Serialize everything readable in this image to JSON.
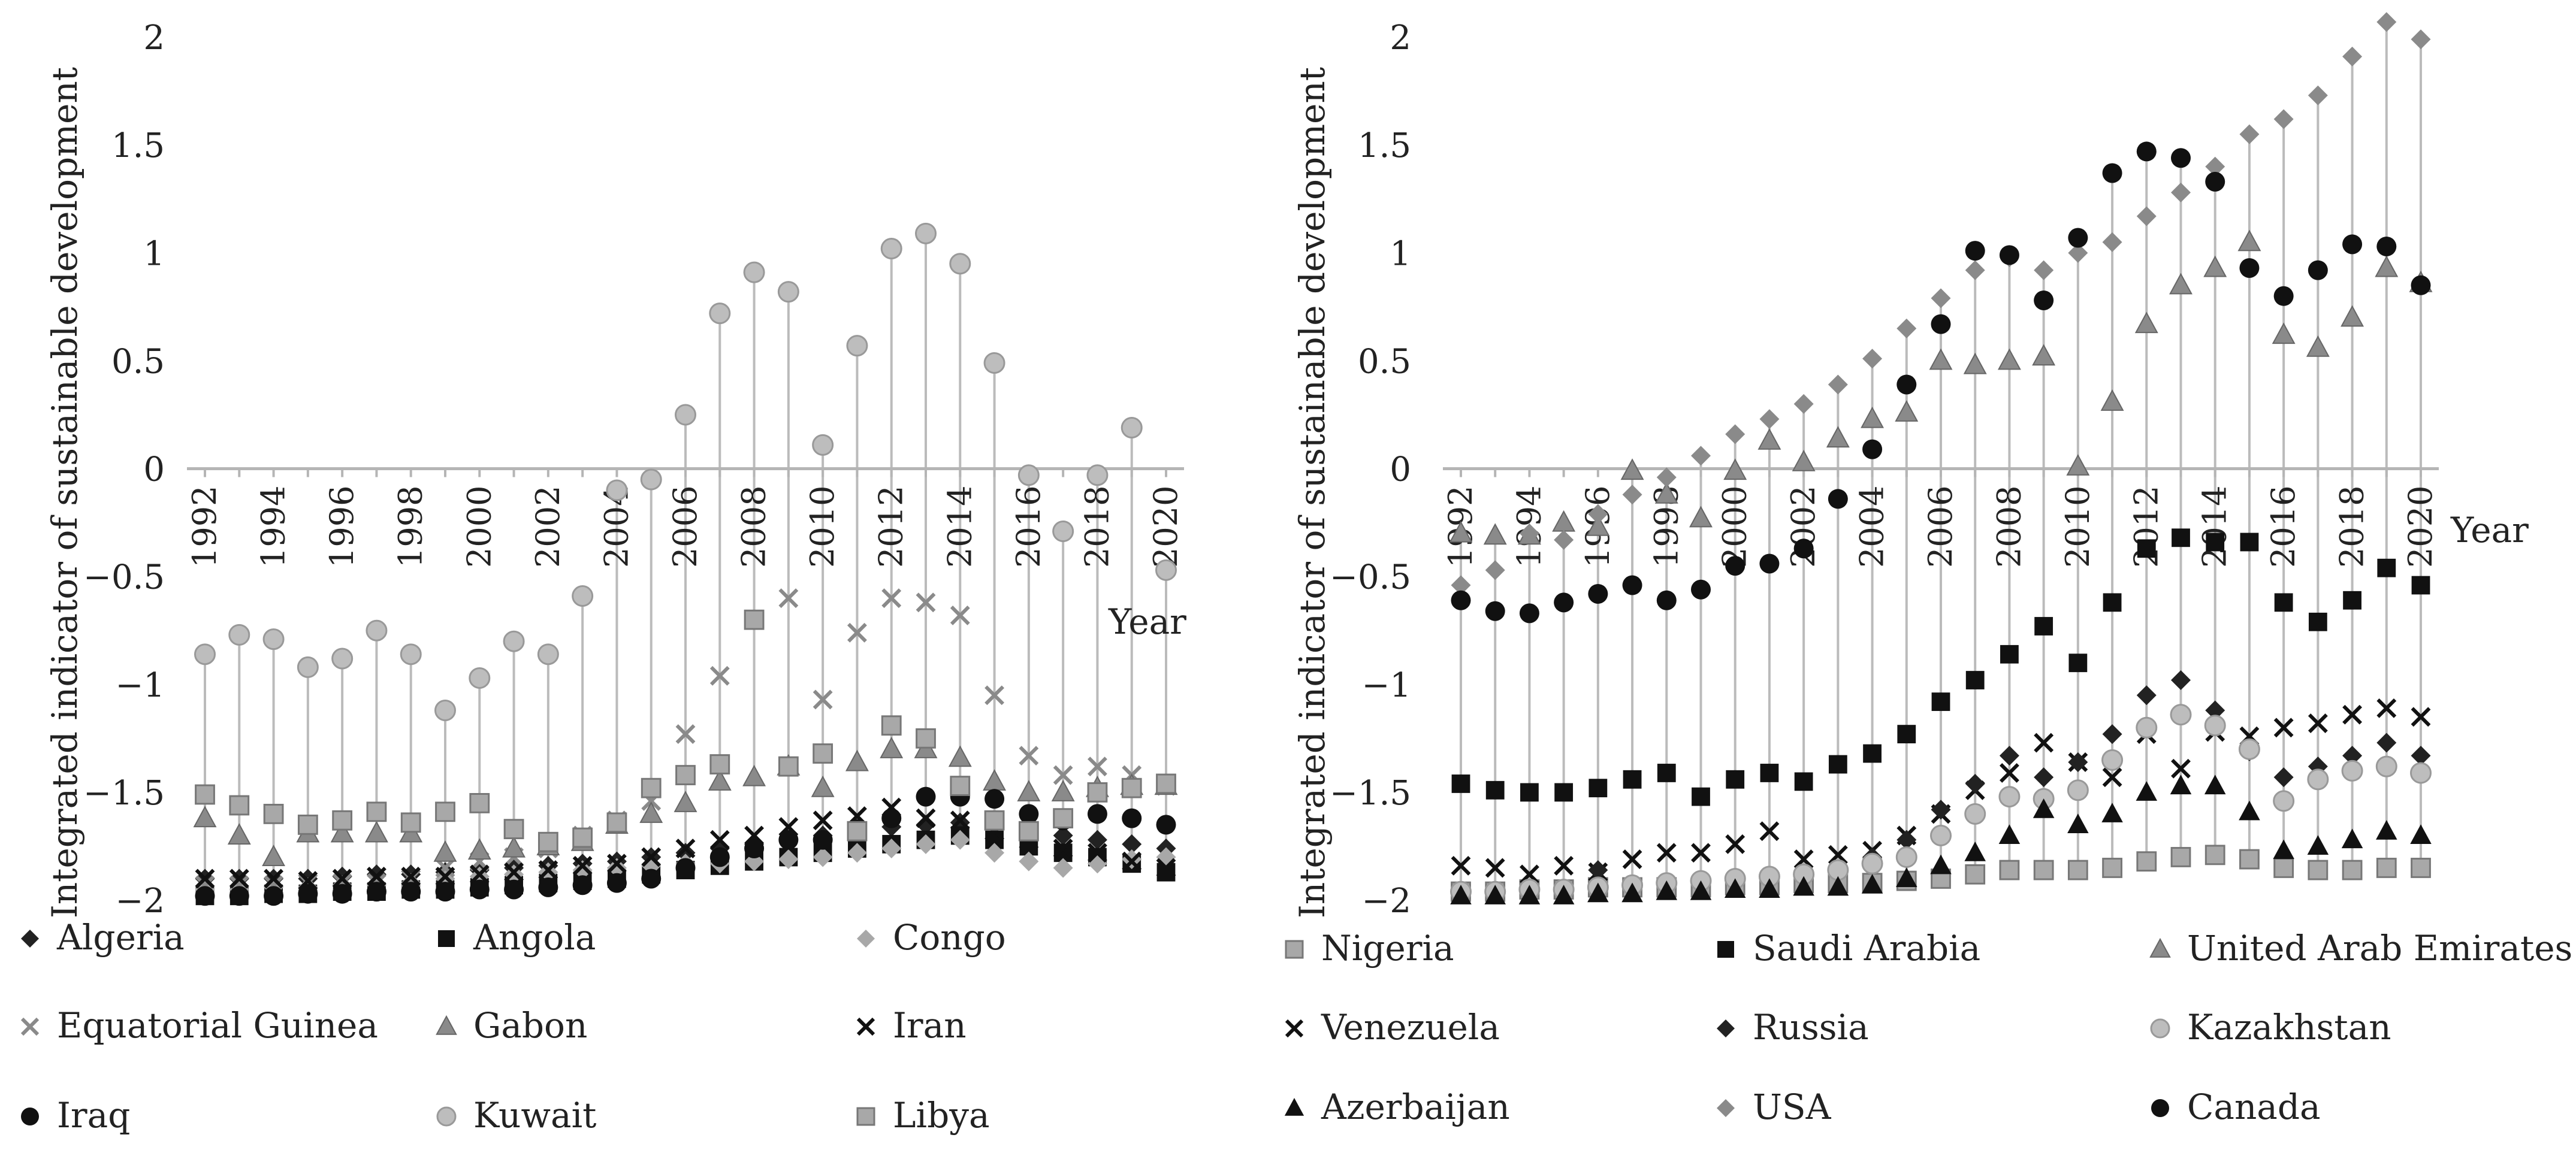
{
  "chart_data": [
    {
      "type": "scatter",
      "title": "",
      "ylabel": "Integrated indicator of sustainable development",
      "xlabel": "Year",
      "ylim": [
        -2,
        2
      ],
      "ytick_labels": [
        "2",
        "1.5",
        "1",
        "0.5",
        "0",
        "−0.5",
        "−1",
        "−1.5",
        "−2"
      ],
      "xtick_labels": [
        "1992",
        "1994",
        "1996",
        "1998",
        "2000",
        "2002",
        "2004",
        "2006",
        "2008",
        "2010",
        "2012",
        "2014",
        "2016",
        "2018",
        "2020"
      ],
      "x": [
        1992,
        1993,
        1994,
        1995,
        1996,
        1997,
        1998,
        1999,
        2000,
        2001,
        2002,
        2003,
        2004,
        2005,
        2006,
        2007,
        2008,
        2009,
        2010,
        2011,
        2012,
        2013,
        2014,
        2015,
        2016,
        2017,
        2018,
        2019,
        2020
      ],
      "legend": "bottom",
      "series": [
        {
          "name": "Algeria",
          "marker": "diamond",
          "color": "#222222",
          "values": [
            -1.9,
            -1.9,
            -1.9,
            -1.9,
            -1.89,
            -1.88,
            -1.88,
            -1.87,
            -1.86,
            -1.85,
            -1.84,
            -1.83,
            -1.82,
            -1.8,
            -1.78,
            -1.76,
            -1.74,
            -1.72,
            -1.7,
            -1.68,
            -1.66,
            -1.65,
            -1.64,
            -1.65,
            -1.68,
            -1.7,
            -1.72,
            -1.74,
            -1.76
          ]
        },
        {
          "name": "Angola",
          "marker": "square",
          "color": "#111111",
          "values": [
            -1.98,
            -1.98,
            -1.97,
            -1.97,
            -1.96,
            -1.96,
            -1.95,
            -1.95,
            -1.94,
            -1.93,
            -1.92,
            -1.91,
            -1.9,
            -1.88,
            -1.86,
            -1.84,
            -1.82,
            -1.8,
            -1.78,
            -1.76,
            -1.74,
            -1.72,
            -1.7,
            -1.72,
            -1.75,
            -1.78,
            -1.8,
            -1.83,
            -1.87
          ]
        },
        {
          "name": "Congo",
          "marker": "diamond",
          "color": "#a8a8a8",
          "values": [
            -1.95,
            -1.95,
            -1.94,
            -1.94,
            -1.93,
            -1.93,
            -1.92,
            -1.9,
            -1.89,
            -1.88,
            -1.87,
            -1.86,
            -1.85,
            -1.84,
            -1.83,
            -1.83,
            -1.82,
            -1.81,
            -1.8,
            -1.78,
            -1.76,
            -1.74,
            -1.72,
            -1.78,
            -1.82,
            -1.85,
            -1.83,
            -1.81,
            -1.8
          ]
        },
        {
          "name": "Equatorial Guinea",
          "marker": "x",
          "color": "#8a8a8a",
          "values": [
            -1.93,
            -1.93,
            -1.93,
            -1.92,
            -1.92,
            -1.92,
            -1.9,
            -1.85,
            -1.82,
            -1.8,
            -1.76,
            -1.7,
            -1.63,
            -1.54,
            -1.23,
            -0.96,
            -0.7,
            -0.6,
            -1.07,
            -0.76,
            -0.6,
            -0.62,
            -0.68,
            -1.05,
            -1.33,
            -1.42,
            -1.38,
            -1.42,
            -1.47
          ]
        },
        {
          "name": "Gabon",
          "marker": "triangle",
          "color": "#8a8a8a",
          "values": [
            -1.62,
            -1.7,
            -1.8,
            -1.69,
            -1.69,
            -1.69,
            -1.69,
            -1.78,
            -1.77,
            -1.76,
            -1.75,
            -1.73,
            -1.65,
            -1.6,
            -1.55,
            -1.45,
            -1.43,
            -1.38,
            -1.48,
            -1.36,
            -1.3,
            -1.3,
            -1.34,
            -1.45,
            -1.5,
            -1.5,
            -1.48,
            -1.47,
            -1.47
          ]
        },
        {
          "name": "Iran",
          "marker": "x",
          "color": "#111111",
          "values": [
            -1.9,
            -1.9,
            -1.9,
            -1.91,
            -1.9,
            -1.89,
            -1.89,
            -1.89,
            -1.88,
            -1.87,
            -1.86,
            -1.84,
            -1.83,
            -1.8,
            -1.76,
            -1.72,
            -1.7,
            -1.66,
            -1.63,
            -1.61,
            -1.57,
            -1.62,
            -1.63,
            -1.68,
            -1.72,
            -1.76,
            -1.78,
            -1.82,
            -1.85
          ]
        },
        {
          "name": "Iraq",
          "marker": "circle",
          "color": "#111111",
          "values": [
            -1.98,
            -1.98,
            -1.98,
            -1.97,
            -1.97,
            -1.96,
            -1.96,
            -1.96,
            -1.95,
            -1.95,
            -1.94,
            -1.93,
            -1.92,
            -1.9,
            -1.85,
            -1.8,
            -1.76,
            -1.72,
            -1.72,
            -1.67,
            -1.62,
            -1.52,
            -1.52,
            -1.53,
            -1.6,
            -1.63,
            -1.6,
            -1.62,
            -1.65
          ]
        },
        {
          "name": "Kuwait",
          "marker": "circle",
          "color": "#bdbdbd",
          "values": [
            -0.86,
            -0.77,
            -0.79,
            -0.92,
            -0.88,
            -0.75,
            -0.86,
            -1.12,
            -0.97,
            -0.8,
            -0.86,
            -0.59,
            -0.1,
            -0.05,
            0.25,
            0.72,
            0.91,
            0.82,
            0.11,
            0.57,
            1.02,
            1.09,
            0.95,
            0.49,
            -0.03,
            -0.29,
            -0.03,
            0.19,
            -0.47
          ]
        },
        {
          "name": "Libya",
          "marker": "square",
          "color": "#a8a8a8",
          "values": [
            -1.51,
            -1.56,
            -1.6,
            -1.65,
            -1.63,
            -1.59,
            -1.64,
            -1.59,
            -1.55,
            -1.67,
            -1.73,
            -1.71,
            -1.64,
            -1.48,
            -1.42,
            -1.37,
            -0.7,
            -1.38,
            -1.32,
            -1.68,
            -1.19,
            -1.25,
            -1.47,
            -1.63,
            -1.68,
            -1.62,
            -1.5,
            -1.48,
            -1.46
          ]
        }
      ]
    },
    {
      "type": "scatter",
      "title": "",
      "ylabel": "Integrated indicator of sustainable development",
      "xlabel": "Year",
      "ylim": [
        -2,
        2
      ],
      "ytick_labels": [
        "2",
        "1.5",
        "1",
        "0.5",
        "0",
        "−0.5",
        "−1",
        "−1.5",
        "−2"
      ],
      "xtick_labels": [
        "1992",
        "1994",
        "1996",
        "1998",
        "2000",
        "2002",
        "2004",
        "2006",
        "2008",
        "2010",
        "2012",
        "2014",
        "2016",
        "2018",
        "2020"
      ],
      "x": [
        1992,
        1993,
        1994,
        1995,
        1996,
        1997,
        1998,
        1999,
        2000,
        2001,
        2002,
        2003,
        2004,
        2005,
        2006,
        2007,
        2008,
        2009,
        2010,
        2011,
        2012,
        2013,
        2014,
        2015,
        2016,
        2017,
        2018,
        2019,
        2020
      ],
      "legend": "bottom",
      "series": [
        {
          "name": "Nigeria",
          "marker": "square",
          "color": "#a8a8a8",
          "values": [
            -1.96,
            -1.96,
            -1.95,
            -1.95,
            -1.94,
            -1.94,
            -1.94,
            -1.94,
            -1.93,
            -1.93,
            -1.92,
            -1.92,
            -1.92,
            -1.91,
            -1.9,
            -1.88,
            -1.86,
            -1.86,
            -1.86,
            -1.85,
            -1.82,
            -1.8,
            -1.79,
            -1.81,
            -1.85,
            -1.86,
            -1.86,
            -1.85,
            -1.85
          ]
        },
        {
          "name": "Saudi Arabia",
          "marker": "square",
          "color": "#111111",
          "values": [
            -1.46,
            -1.49,
            -1.5,
            -1.5,
            -1.48,
            -1.44,
            -1.41,
            -1.52,
            -1.44,
            -1.41,
            -1.45,
            -1.37,
            -1.32,
            -1.23,
            -1.08,
            -0.98,
            -0.86,
            -0.73,
            -0.9,
            -0.62,
            -0.37,
            -0.32,
            -0.34,
            -0.34,
            -0.62,
            -0.71,
            -0.61,
            -0.46,
            -0.54
          ]
        },
        {
          "name": "United Arab Emirates",
          "marker": "triangle",
          "color": "#8a8a8a",
          "values": [
            -0.3,
            -0.31,
            -0.31,
            -0.25,
            -0.27,
            -0.01,
            -0.12,
            -0.23,
            -0.01,
            0.13,
            0.03,
            0.14,
            0.23,
            0.26,
            0.5,
            0.48,
            0.5,
            0.52,
            0.01,
            0.31,
            0.67,
            0.85,
            0.93,
            1.05,
            0.62,
            0.56,
            0.7,
            0.93,
            0.86
          ]
        },
        {
          "name": "Venezuela",
          "marker": "x",
          "color": "#111111",
          "values": [
            -1.84,
            -1.85,
            -1.88,
            -1.84,
            -1.87,
            -1.81,
            -1.78,
            -1.78,
            -1.74,
            -1.68,
            -1.81,
            -1.79,
            -1.77,
            -1.7,
            -1.6,
            -1.49,
            -1.41,
            -1.27,
            -1.36,
            -1.43,
            -1.23,
            -1.39,
            -1.22,
            -1.24,
            -1.2,
            -1.18,
            -1.14,
            -1.11,
            -1.15
          ]
        },
        {
          "name": "Russia",
          "marker": "diamond",
          "color": "#222222",
          "values": [
            -1.97,
            -1.97,
            -1.96,
            -1.96,
            -1.86,
            -1.94,
            -1.94,
            -1.93,
            -1.92,
            -1.9,
            -1.89,
            -1.86,
            -1.8,
            -1.72,
            -1.58,
            -1.46,
            -1.33,
            -1.43,
            -1.36,
            -1.23,
            -1.05,
            -0.98,
            -1.12,
            -1.31,
            -1.43,
            -1.38,
            -1.33,
            -1.27,
            -1.33
          ]
        },
        {
          "name": "Kazakhstan",
          "marker": "circle",
          "color": "#bdbdbd",
          "values": [
            -1.96,
            -1.96,
            -1.95,
            -1.95,
            -1.94,
            -1.93,
            -1.92,
            -1.91,
            -1.9,
            -1.89,
            -1.88,
            -1.86,
            -1.83,
            -1.8,
            -1.7,
            -1.6,
            -1.52,
            -1.53,
            -1.49,
            -1.35,
            -1.2,
            -1.14,
            -1.19,
            -1.3,
            -1.54,
            -1.44,
            -1.4,
            -1.38,
            -1.41
          ]
        },
        {
          "name": "Azerbaijan",
          "marker": "triangle",
          "color": "#111111",
          "values": [
            -1.98,
            -1.98,
            -1.98,
            -1.98,
            -1.97,
            -1.97,
            -1.96,
            -1.96,
            -1.95,
            -1.95,
            -1.94,
            -1.94,
            -1.93,
            -1.9,
            -1.84,
            -1.78,
            -1.7,
            -1.58,
            -1.65,
            -1.6,
            -1.5,
            -1.47,
            -1.47,
            -1.59,
            -1.77,
            -1.75,
            -1.72,
            -1.68,
            -1.7
          ]
        },
        {
          "name": "USA",
          "marker": "diamond",
          "color": "#8a8a8a",
          "values": [
            -0.54,
            -0.47,
            -0.3,
            -0.33,
            -0.21,
            -0.12,
            -0.04,
            0.06,
            0.16,
            0.23,
            0.3,
            0.39,
            0.51,
            0.65,
            0.79,
            0.92,
            0.98,
            0.92,
            1.0,
            1.05,
            1.17,
            1.28,
            1.4,
            1.55,
            1.62,
            1.73,
            1.91,
            2.07,
            1.99
          ]
        },
        {
          "name": "Canada",
          "marker": "circle",
          "color": "#111111",
          "values": [
            -0.61,
            -0.66,
            -0.67,
            -0.62,
            -0.58,
            -0.54,
            -0.61,
            -0.56,
            -0.45,
            -0.44,
            -0.37,
            -0.14,
            0.09,
            0.39,
            0.67,
            1.01,
            0.99,
            0.78,
            1.07,
            1.37,
            1.47,
            1.44,
            1.33,
            0.93,
            0.8,
            0.92,
            1.04,
            1.03,
            0.85
          ]
        }
      ]
    }
  ]
}
